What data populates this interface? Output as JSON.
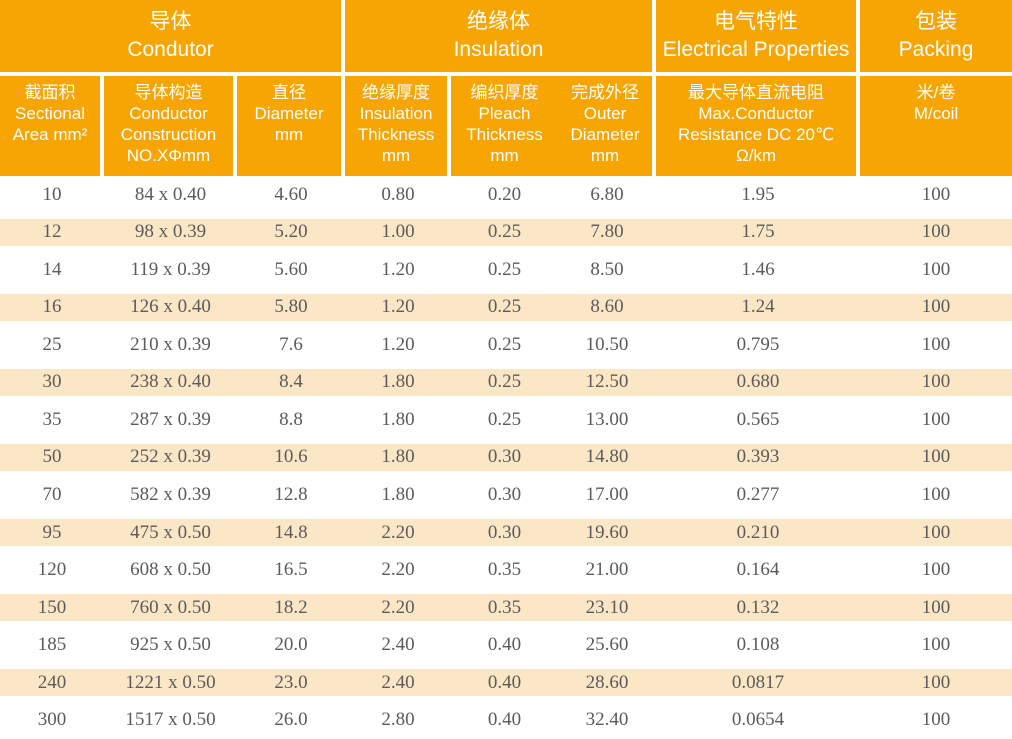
{
  "colors": {
    "header_bg": "#F7A503",
    "stripe_bg": "#FBE7C5",
    "data_text": "#5C5A5A",
    "header_text": "#FFFFFF"
  },
  "table": {
    "groups": [
      {
        "label": "导体\nCondutor"
      },
      {
        "label": "绝缘体\nInsulation"
      },
      {
        "label": "电气特性\nElectrical Properties"
      },
      {
        "label": "包装\nPacking"
      }
    ],
    "columns": [
      {
        "label": "截面积\nSectional\nArea mm²"
      },
      {
        "label": "导体构造\nConductor\nConstruction\nNO.XΦmm"
      },
      {
        "label": "直径\nDiameter\nmm"
      },
      {
        "label": "绝缘厚度\nInsulation\nThickness\nmm"
      },
      {
        "label": "编织厚度\nPleach\nThickness\nmm"
      },
      {
        "label": "完成外径\nOuter\nDiameter\nmm"
      },
      {
        "label": "最大导体直流电阻\nMax.Conductor\nResistance DC 20℃\nΩ/km"
      },
      {
        "label": "米/卷\nM/coil"
      }
    ],
    "rows": [
      [
        "10",
        "84 x 0.40",
        "4.60",
        "0.80",
        "0.20",
        "6.80",
        "1.95",
        "100"
      ],
      [
        "12",
        "98 x 0.39",
        "5.20",
        "1.00",
        "0.25",
        "7.80",
        "1.75",
        "100"
      ],
      [
        "14",
        "119 x 0.39",
        "5.60",
        "1.20",
        "0.25",
        "8.50",
        "1.46",
        "100"
      ],
      [
        "16",
        "126 x 0.40",
        "5.80",
        "1.20",
        "0.25",
        "8.60",
        "1.24",
        "100"
      ],
      [
        "25",
        "210 x 0.39",
        "7.6",
        "1.20",
        "0.25",
        "10.50",
        "0.795",
        "100"
      ],
      [
        "30",
        "238 x 0.40",
        "8.4",
        "1.80",
        "0.25",
        "12.50",
        "0.680",
        "100"
      ],
      [
        "35",
        "287 x 0.39",
        "8.8",
        "1.80",
        "0.25",
        "13.00",
        "0.565",
        "100"
      ],
      [
        "50",
        "252 x 0.39",
        "10.6",
        "1.80",
        "0.30",
        "14.80",
        "0.393",
        "100"
      ],
      [
        "70",
        "582 x 0.39",
        "12.8",
        "1.80",
        "0.30",
        "17.00",
        "0.277",
        "100"
      ],
      [
        "95",
        "475 x 0.50",
        "14.8",
        "2.20",
        "0.30",
        "19.60",
        "0.210",
        "100"
      ],
      [
        "120",
        "608 x 0.50",
        "16.5",
        "2.20",
        "0.35",
        "21.00",
        "0.164",
        "100"
      ],
      [
        "150",
        "760 x 0.50",
        "18.2",
        "2.20",
        "0.35",
        "23.10",
        "0.132",
        "100"
      ],
      [
        "185",
        "925 x 0.50",
        "20.0",
        "2.40",
        "0.40",
        "25.60",
        "0.108",
        "100"
      ],
      [
        "240",
        "1221 x 0.50",
        "23.0",
        "2.40",
        "0.40",
        "28.60",
        "0.0817",
        "100"
      ],
      [
        "300",
        "1517 x 0.50",
        "26.0",
        "2.80",
        "0.40",
        "32.40",
        "0.0654",
        "100"
      ]
    ]
  }
}
